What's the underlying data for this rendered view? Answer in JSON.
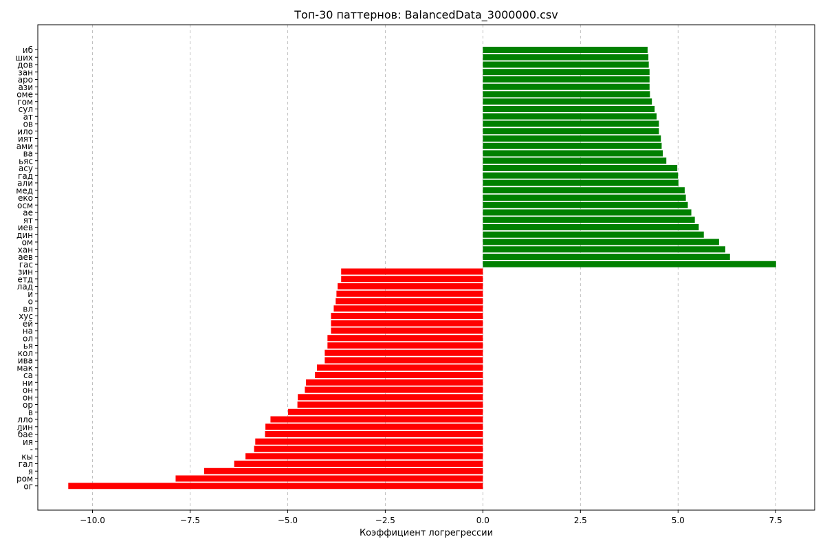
{
  "chart_data": {
    "type": "bar",
    "orientation": "horizontal",
    "title": "Топ-30 паттернов: BalancedData_3000000.csv",
    "xlabel": "Коэффициент логрегрессии",
    "ylabel": "",
    "xlim": [
      -11.4,
      8.5
    ],
    "xticks": [
      -10.0,
      -7.5,
      -5.0,
      -2.5,
      0.0,
      2.5,
      5.0,
      7.5
    ],
    "xtick_labels": [
      "−10.0",
      "−7.5",
      "−5.0",
      "−2.5",
      "0.0",
      "2.5",
      "5.0",
      "7.5"
    ],
    "grid": "x",
    "colors": {
      "positive": "#008000",
      "negative": "#ff0000",
      "grid": "#b0b0b0"
    },
    "categories": [
      "иб",
      "ших",
      "дов",
      "зан",
      "аро",
      "ази",
      "оме",
      "гом",
      "сул",
      "ат ",
      "ов ",
      "ило",
      "ият",
      "ами",
      "ва ",
      "ьяс",
      "асу",
      "гад",
      "али",
      "мед",
      "еко",
      "осм",
      "ае ",
      "ят ",
      "иев",
      "дин",
      "ом ",
      "хан",
      "аев",
      "гас",
      "зин",
      "етд",
      "лад",
      "и ",
      "о ",
      "вл",
      "хус",
      "ей ",
      "на ",
      "ол",
      "ья",
      "кол",
      "ива",
      "мак",
      "са ",
      "ни ",
      "он ",
      "он",
      "ор",
      "в ",
      "лло",
      "лин",
      "бае",
      "ия ",
      "-",
      "кы",
      "гал",
      "я ",
      "ром",
      "ог"
    ],
    "values": [
      4.22,
      4.24,
      4.25,
      4.27,
      4.27,
      4.27,
      4.28,
      4.33,
      4.4,
      4.45,
      4.51,
      4.51,
      4.56,
      4.58,
      4.61,
      4.7,
      4.98,
      5.0,
      5.01,
      5.17,
      5.2,
      5.25,
      5.34,
      5.43,
      5.53,
      5.66,
      6.05,
      6.21,
      6.33,
      7.51,
      -3.63,
      -3.63,
      -3.72,
      -3.75,
      -3.77,
      -3.82,
      -3.89,
      -3.89,
      -3.89,
      -3.98,
      -3.98,
      -4.05,
      -4.05,
      -4.25,
      -4.3,
      -4.53,
      -4.56,
      -4.74,
      -4.75,
      -4.99,
      -5.44,
      -5.57,
      -5.58,
      -5.83,
      -5.86,
      -6.08,
      -6.37,
      -7.14,
      -7.87,
      -10.62
    ]
  }
}
